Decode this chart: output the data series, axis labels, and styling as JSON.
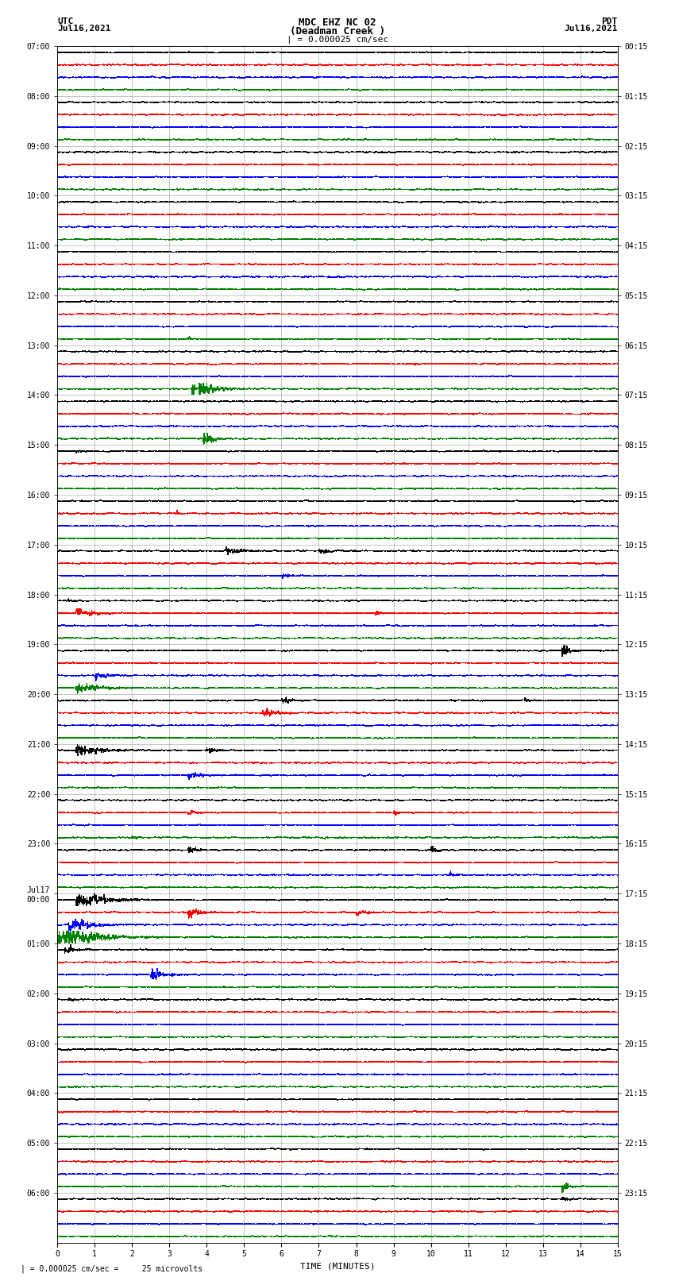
{
  "title_line1": "MDC EHZ NC 02",
  "title_line2": "(Deadman Creek )",
  "title_line3": "| = 0.000025 cm/sec",
  "label_utc": "UTC",
  "label_pdt": "PDT",
  "date_left": "Jul16,2021",
  "date_right": "Jul16,2021",
  "xlabel": "TIME (MINUTES)",
  "bottom_note": "| = 0.000025 cm/sec =     25 microvolts",
  "utc_labels": [
    "07:00",
    "08:00",
    "09:00",
    "10:00",
    "11:00",
    "12:00",
    "13:00",
    "14:00",
    "15:00",
    "16:00",
    "17:00",
    "18:00",
    "19:00",
    "20:00",
    "21:00",
    "22:00",
    "23:00",
    "Jul17\n00:00",
    "01:00",
    "02:00",
    "03:00",
    "04:00",
    "05:00",
    "06:00"
  ],
  "pdt_labels": [
    "00:15",
    "01:15",
    "02:15",
    "03:15",
    "04:15",
    "05:15",
    "06:15",
    "07:15",
    "08:15",
    "09:15",
    "10:15",
    "11:15",
    "12:15",
    "13:15",
    "14:15",
    "15:15",
    "16:15",
    "17:15",
    "18:15",
    "19:15",
    "20:15",
    "21:15",
    "22:15",
    "23:15"
  ],
  "colors": [
    "black",
    "red",
    "blue",
    "green"
  ],
  "n_rows": 24,
  "traces_per_row": 4,
  "xmin": 0,
  "xmax": 15,
  "background_color": "white",
  "grid_color": "#777777",
  "title_fontsize": 9,
  "label_fontsize": 8,
  "tick_fontsize": 7,
  "noise_base": 0.012,
  "seed": 42
}
